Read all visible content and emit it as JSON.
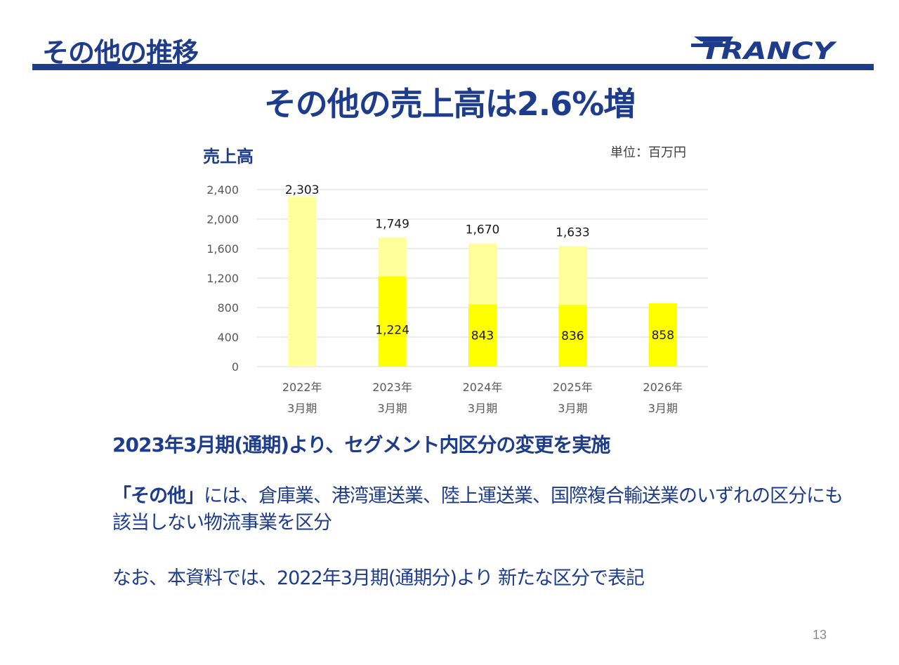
{
  "header": {
    "title": "その他の推移",
    "logo_text": "TRANCY"
  },
  "headline": "その他の売上高は2.6%増",
  "chart_title": "売上高",
  "unit_label": "単位：百万円",
  "chart_data": {
    "type": "bar",
    "stacked": true,
    "categories": [
      [
        "2022年",
        "3月期"
      ],
      [
        "2023年",
        "3月期"
      ],
      [
        "2024年",
        "3月期"
      ],
      [
        "2025年",
        "3月期"
      ],
      [
        "2026年",
        "3月期"
      ]
    ],
    "series": [
      {
        "values": [
          null,
          1224,
          843,
          836,
          858
        ],
        "color": "#ffff00"
      },
      {
        "values": [
          2303,
          525,
          827,
          797,
          null
        ],
        "color": "#ffff99"
      }
    ],
    "totals": [
      2303,
      1749,
      1670,
      1633,
      null
    ],
    "inner_labels": [
      "",
      "1,224",
      "843",
      "836",
      "858"
    ],
    "total_labels": [
      "2,303",
      "1,749",
      "1,670",
      "1,633",
      ""
    ],
    "yticks": [
      0,
      400,
      800,
      1200,
      1600,
      2000,
      2400
    ],
    "ytick_labels": [
      "0",
      "400",
      "800",
      "1,200",
      "1,600",
      "2,000",
      "2,400"
    ],
    "ylim": [
      0,
      2400
    ],
    "grid": true,
    "gridline_color": "#d9d9d9"
  },
  "notes": {
    "line1": "2023年3月期(通期)より、セグメント内区分の変更を実施",
    "line2_bold": "「その他」",
    "line2_rest": "には、倉庫業、港湾運送業、陸上運送業、国際複合輸送業のいずれの区分にも該当しない物流事業を区分",
    "line3": "なお、本資料では、2022年3月期(通期分)より 新たな区分で表記"
  },
  "page_number": "13",
  "colors": {
    "brand_blue": "#1e3c8c",
    "bar_base": "#ffff00",
    "bar_top": "#ffff99"
  }
}
